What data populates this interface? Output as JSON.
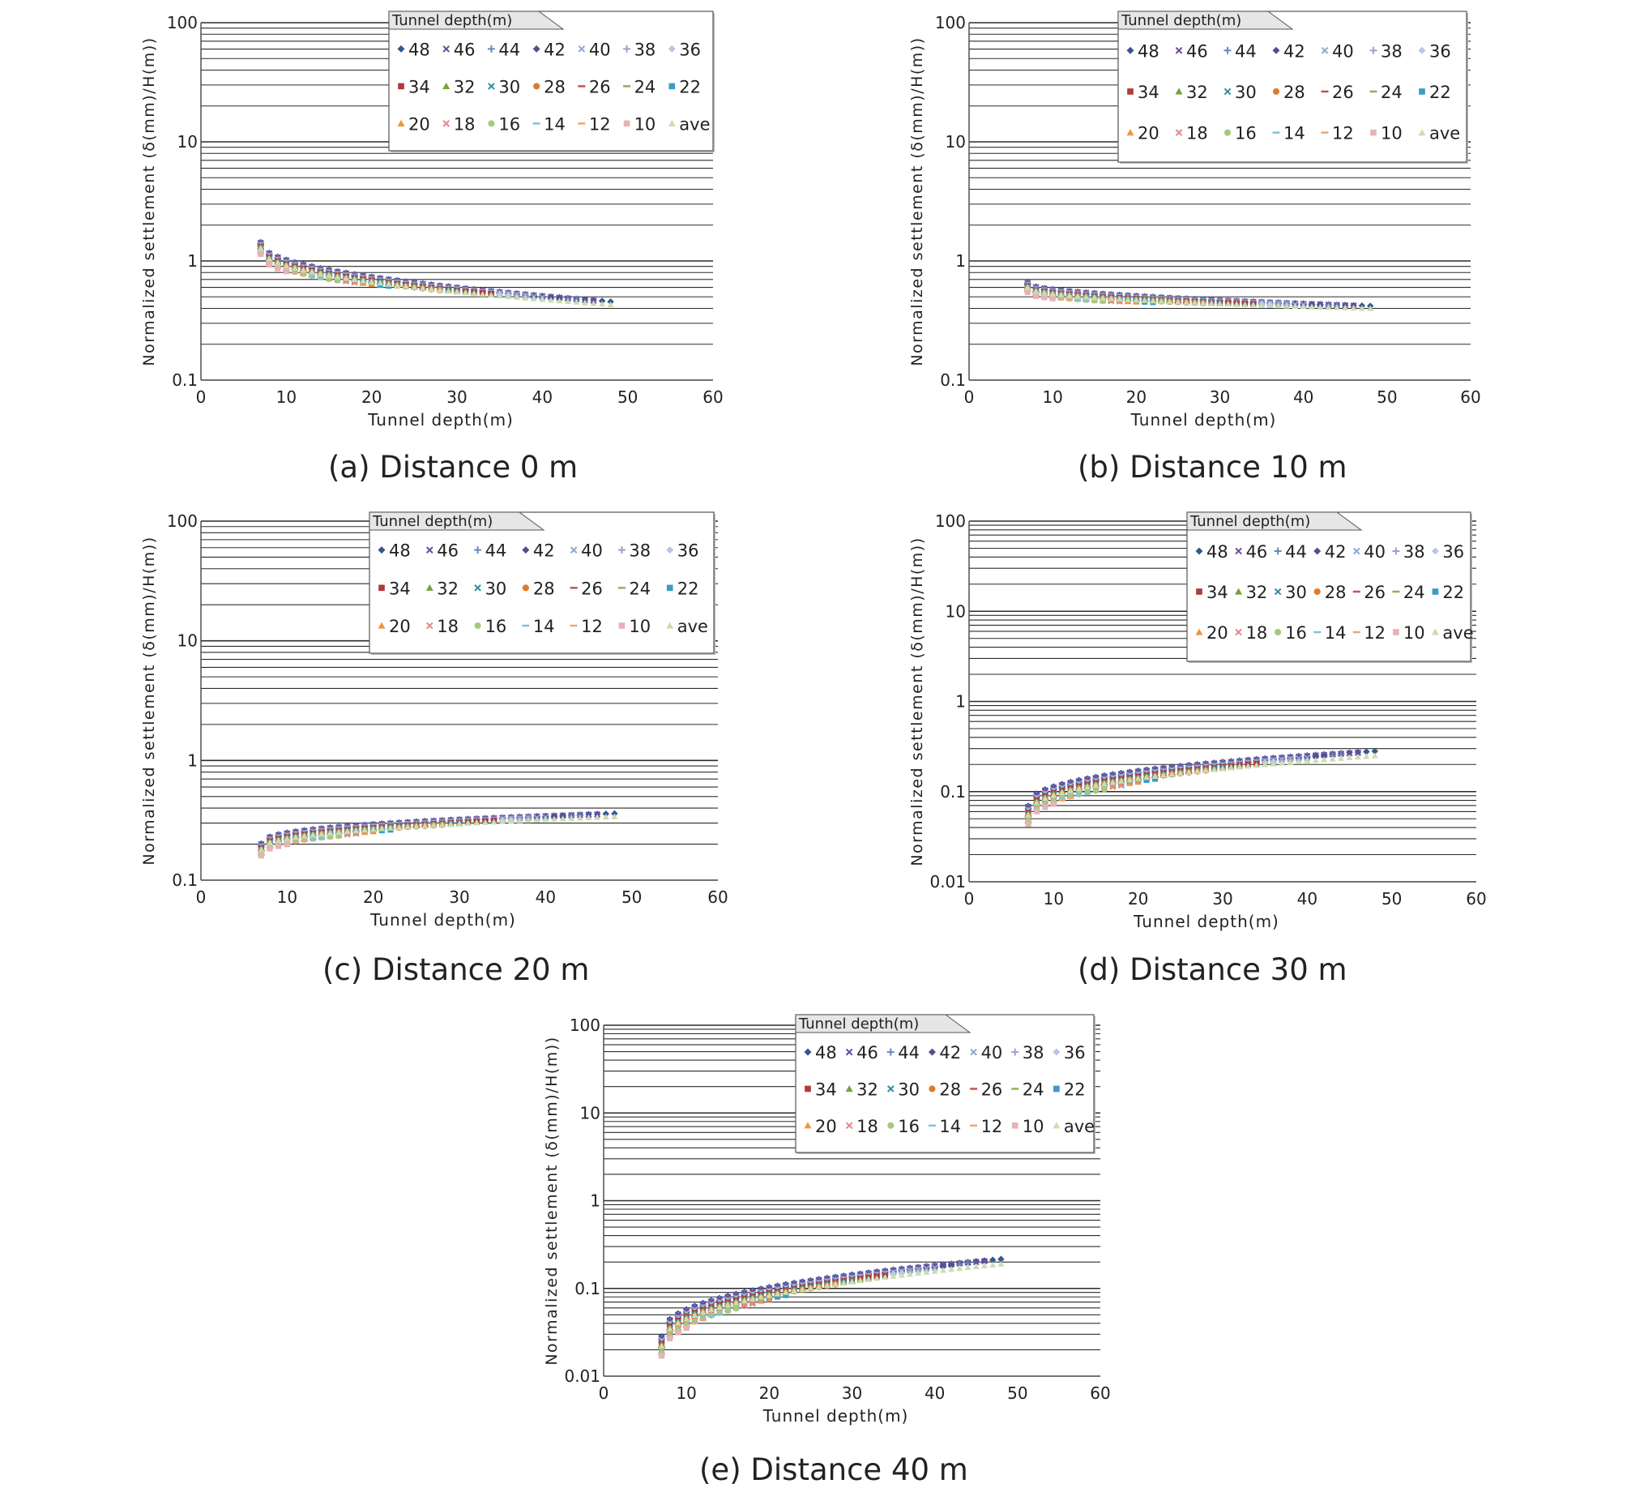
{
  "legend_title": "Tunnel depth(m)",
  "legend_labels": [
    "48",
    "46",
    "44",
    "42",
    "40",
    "38",
    "36",
    "34",
    "32",
    "30",
    "28",
    "26",
    "24",
    "22",
    "20",
    "18",
    "16",
    "14",
    "12",
    "10",
    "ave"
  ],
  "series_colors": [
    "#35578f",
    "#6b4aa0",
    "#6a86c0",
    "#5a4c8e",
    "#8fa6d6",
    "#a99cc8",
    "#b8c6e3",
    "#b03a3a",
    "#78a13b",
    "#2f8ea5",
    "#e07b2a",
    "#c45252",
    "#8cb451",
    "#3a9bc8",
    "#f0953e",
    "#e2878c",
    "#a6c97b",
    "#7fc4dc",
    "#f3a66d",
    "#e6b3b6",
    "#c9deb0"
  ],
  "x_axis_label": "Tunnel depth(m)",
  "y_axis_label": "Normalized settlement (δ(mm)/H(m))",
  "chart_data": [
    {
      "type": "scatter",
      "panel": "a",
      "caption": "(a) Distance 0 m",
      "xlim": [
        0,
        60
      ],
      "x_ticks": [
        "0",
        "10",
        "20",
        "30",
        "40",
        "50",
        "60"
      ],
      "y_scale": "log",
      "ylim": [
        0.1,
        100
      ],
      "y_ticks": [
        "0.1",
        "1",
        "10",
        "100"
      ],
      "grid": "horizontal",
      "legend_position": "top-right",
      "curve": {
        "depths": [
          48,
          46,
          44,
          42,
          40,
          38,
          36,
          34,
          32,
          30,
          28,
          26,
          24,
          22,
          20,
          18,
          16,
          14,
          12,
          10
        ],
        "start_x": 7,
        "value_at_7": 1.28,
        "value_at_48": 0.43,
        "shape": "decreasing",
        "spread": 0.1
      }
    },
    {
      "type": "scatter",
      "panel": "b",
      "caption": "(b) Distance 10 m",
      "xlim": [
        0,
        60
      ],
      "x_ticks": [
        "0",
        "10",
        "20",
        "30",
        "40",
        "50",
        "60"
      ],
      "y_scale": "log",
      "ylim": [
        0.1,
        100
      ],
      "y_ticks": [
        "0.1",
        "1",
        "10",
        "100"
      ],
      "grid": "horizontal",
      "legend_position": "top-right",
      "curve": {
        "depths": [
          48,
          46,
          44,
          42,
          40,
          38,
          36,
          34,
          32,
          30,
          28,
          26,
          24,
          22,
          20,
          18,
          16,
          14,
          12,
          10
        ],
        "start_x": 7,
        "value_at_7": 0.6,
        "value_at_48": 0.4,
        "shape": "decreasing",
        "spread": 0.08
      }
    },
    {
      "type": "scatter",
      "panel": "c",
      "caption": "(c) Distance 20 m",
      "xlim": [
        0,
        60
      ],
      "x_ticks": [
        "0",
        "10",
        "20",
        "30",
        "40",
        "50",
        "60"
      ],
      "y_scale": "log",
      "ylim": [
        0.1,
        100
      ],
      "y_ticks": [
        "0.1",
        "1",
        "10",
        "100"
      ],
      "grid": "horizontal",
      "legend_position": "top-right",
      "curve": {
        "depths": [
          48,
          46,
          44,
          42,
          40,
          38,
          36,
          34,
          32,
          30,
          28,
          26,
          24,
          22,
          20,
          18,
          16,
          14,
          12,
          10
        ],
        "start_x": 7,
        "value_at_7": 0.18,
        "value_at_48": 0.34,
        "shape": "increasing",
        "spread": 0.1
      }
    },
    {
      "type": "scatter",
      "panel": "d",
      "caption": "(d) Distance 30 m",
      "xlim": [
        0,
        60
      ],
      "x_ticks": [
        "0",
        "10",
        "20",
        "30",
        "40",
        "50",
        "60"
      ],
      "y_scale": "log",
      "ylim": [
        0.01,
        100
      ],
      "y_ticks": [
        "0.01",
        "0.1",
        "1",
        "10",
        "100"
      ],
      "grid": "horizontal",
      "legend_position": "top-right",
      "curve": {
        "depths": [
          48,
          46,
          44,
          42,
          40,
          38,
          36,
          34,
          32,
          30,
          28,
          26,
          24,
          22,
          20,
          18,
          16,
          14,
          12,
          10
        ],
        "start_x": 7,
        "value_at_7": 0.055,
        "value_at_48": 0.25,
        "shape": "increasing",
        "spread": 0.2
      }
    },
    {
      "type": "scatter",
      "panel": "e",
      "caption": "(e) Distance 40 m",
      "xlim": [
        0,
        60
      ],
      "x_ticks": [
        "0",
        "10",
        "20",
        "30",
        "40",
        "50",
        "60"
      ],
      "y_scale": "log",
      "ylim": [
        0.01,
        100
      ],
      "y_ticks": [
        "0.01",
        "0.1",
        "1",
        "10",
        "100"
      ],
      "grid": "horizontal",
      "legend_position": "top-right",
      "curve": {
        "depths": [
          48,
          46,
          44,
          42,
          40,
          38,
          36,
          34,
          32,
          30,
          28,
          26,
          24,
          22,
          20,
          18,
          16,
          14,
          12,
          10
        ],
        "start_x": 7,
        "value_at_7": 0.022,
        "value_at_48": 0.19,
        "shape": "increasing",
        "spread": 0.22
      }
    }
  ]
}
